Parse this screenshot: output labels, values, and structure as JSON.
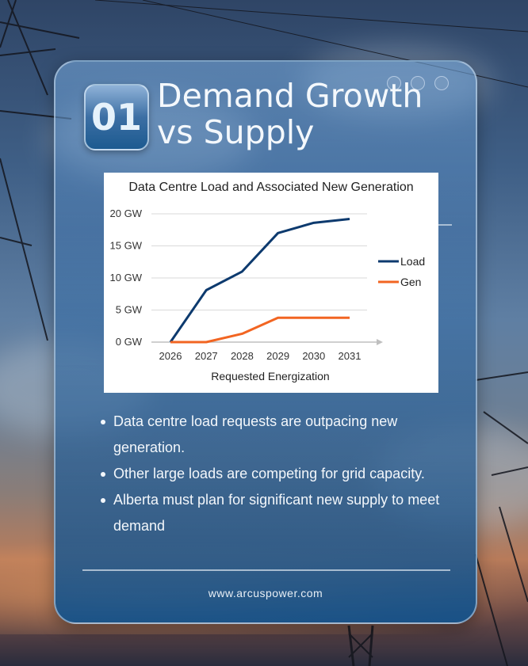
{
  "card": {
    "number": "01",
    "title_line1": "Demand Growth",
    "title_line2": "vs Supply"
  },
  "bullets": [
    "Data centre load requests are outpacing new generation.",
    "Other large loads are competing for grid capacity.",
    "Alberta must plan for significant new supply to meet demand"
  ],
  "footer": {
    "url": "www.arcuspower.com"
  },
  "colors": {
    "load": "#0d3a6e",
    "gen": "#f26522",
    "grid": "#d9d9d9",
    "axis": "#bfbfbf"
  },
  "chart_data": {
    "type": "line",
    "title": "Data Centre Load and Associated New Generation",
    "xlabel": "Requested Energization",
    "ylabel": "",
    "categories": [
      "2026",
      "2027",
      "2028",
      "2029",
      "2030",
      "2031"
    ],
    "y_ticks": [
      "0 GW",
      "5 GW",
      "10 GW",
      "15 GW",
      "20 GW"
    ],
    "ylim": [
      0,
      20
    ],
    "grid": true,
    "legend": "right",
    "series": [
      {
        "name": "Load",
        "values": [
          0,
          8.1,
          11.0,
          17.0,
          18.6,
          19.2
        ]
      },
      {
        "name": "Gen",
        "values": [
          0,
          0,
          1.3,
          3.8,
          3.8,
          3.8
        ]
      }
    ]
  }
}
